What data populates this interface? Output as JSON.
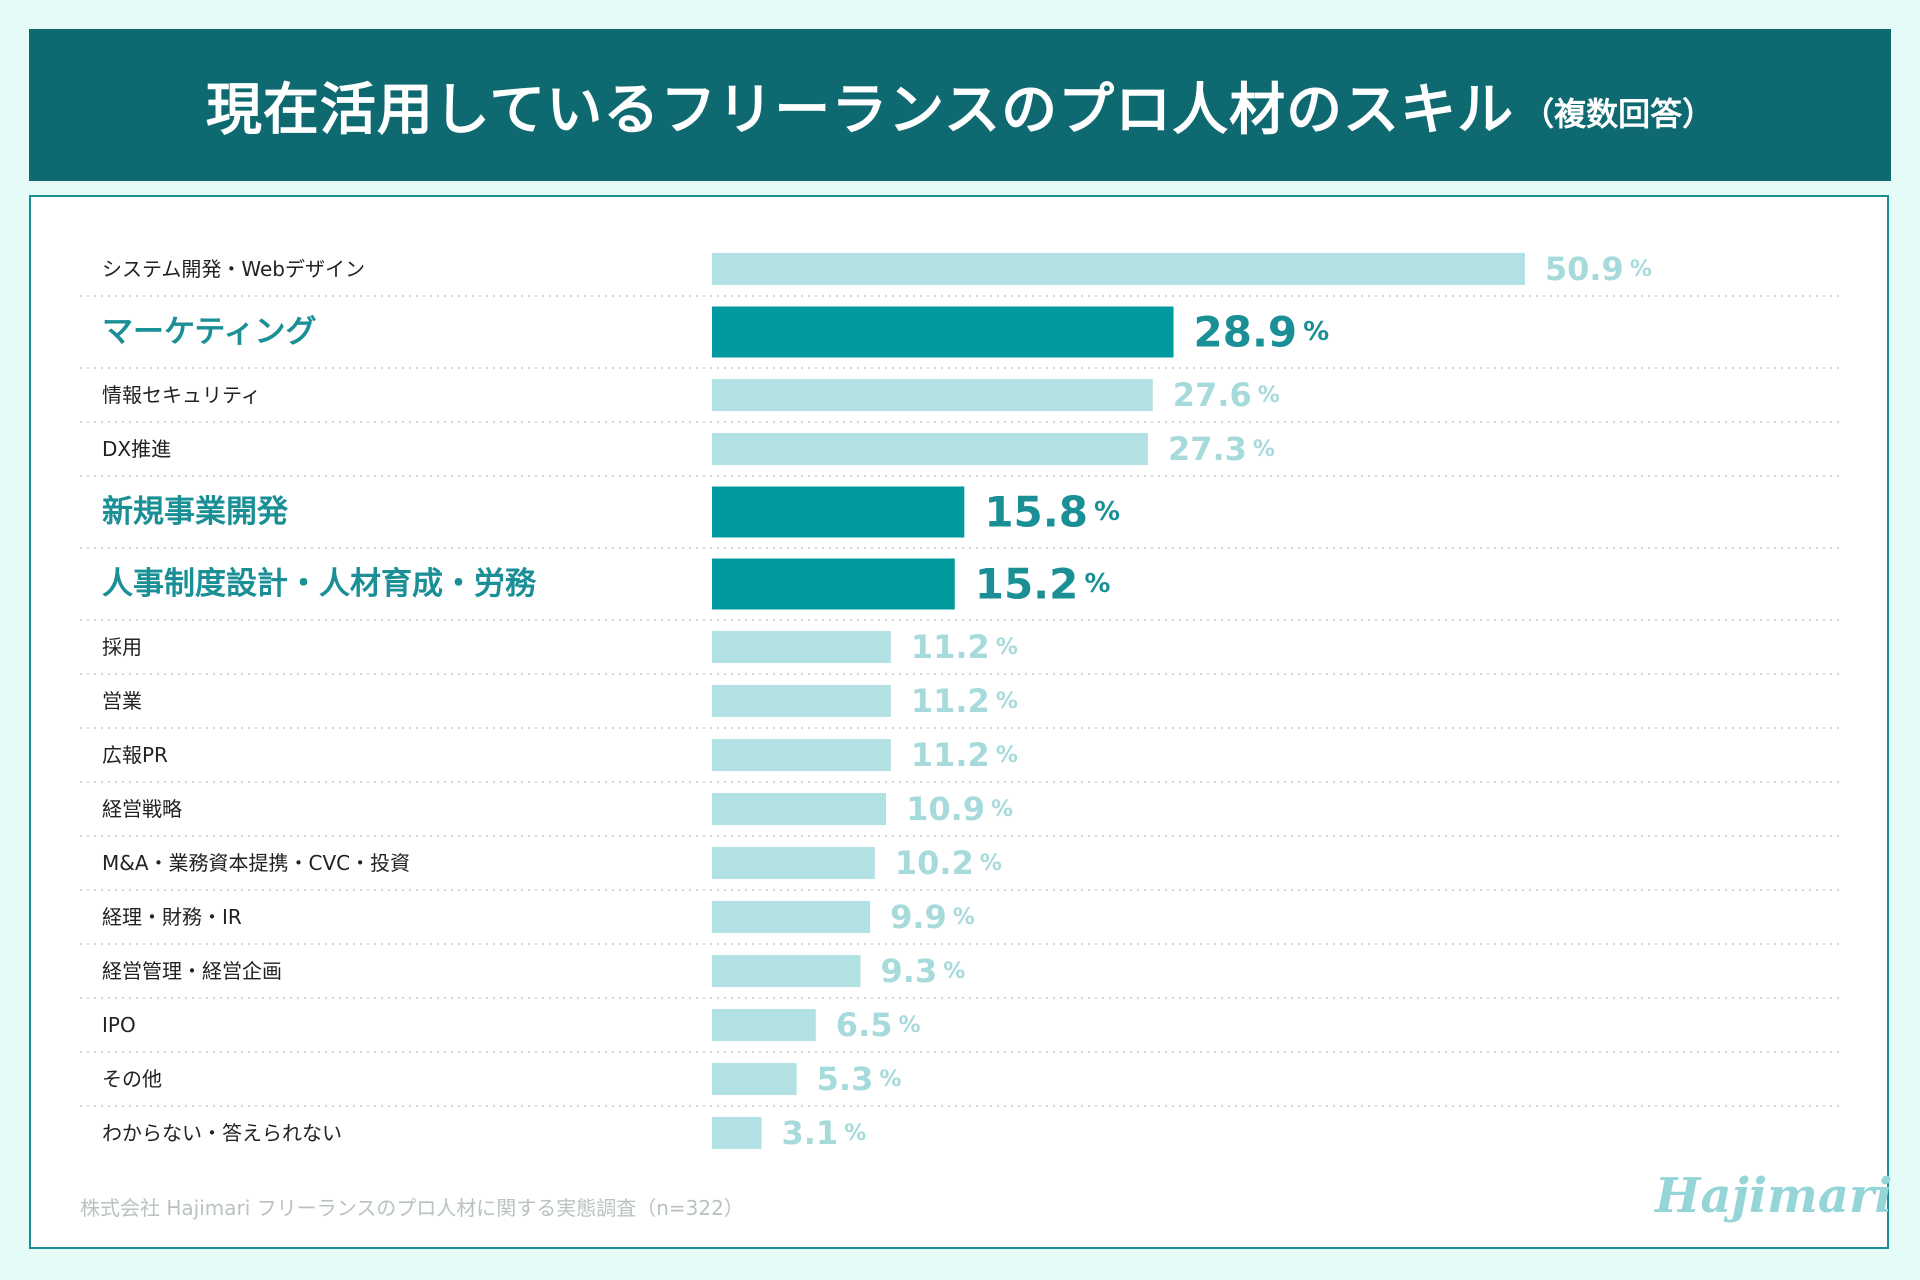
{
  "header": {
    "title": "現在活用しているフリーランスのプロ人材のスキル",
    "subtitle": "（複数回答）"
  },
  "footer": {
    "source": "株式会社 Hajimari フリーランスのプロ人材に関する実態調査（n=322）",
    "logo": "Hajimari"
  },
  "colors": {
    "highlight_bar": "#00999d",
    "normal_bar": "#b1e1e2",
    "highlight_text": "#1a8f96",
    "normal_label": "#222222",
    "normal_value": "#a6dadb"
  },
  "chart_data": {
    "type": "bar",
    "orientation": "horizontal",
    "unit": "%",
    "categories": [
      "システム開発・Webデザイン",
      "マーケティング",
      "情報セキュリティ",
      "DX推進",
      "新規事業開発",
      "人事制度設計・人材育成・労務",
      "採用",
      "営業",
      "広報PR",
      "経営戦略",
      "M&A・業務資本提携・CVC・投資",
      "経理・財務・IR",
      "経営管理・経営企画",
      "IPO",
      "その他",
      "わからない・答えられない"
    ],
    "values": [
      50.9,
      28.9,
      27.6,
      27.3,
      15.8,
      15.2,
      11.2,
      11.2,
      11.2,
      10.9,
      10.2,
      9.9,
      9.3,
      6.5,
      5.3,
      3.1
    ],
    "highlighted": [
      false,
      true,
      false,
      false,
      true,
      true,
      false,
      false,
      false,
      false,
      false,
      false,
      false,
      false,
      false,
      false
    ],
    "value_labels": [
      "50.9",
      "28.9",
      "27.6",
      "27.3",
      "15.8",
      "15.2",
      "11.2",
      "11.2",
      "11.2",
      "10.9",
      "10.2",
      "9.9",
      "9.3",
      "6.5",
      "5.3",
      "3.1"
    ],
    "value_suffix": "%",
    "grid": false,
    "separators": "dotted"
  }
}
